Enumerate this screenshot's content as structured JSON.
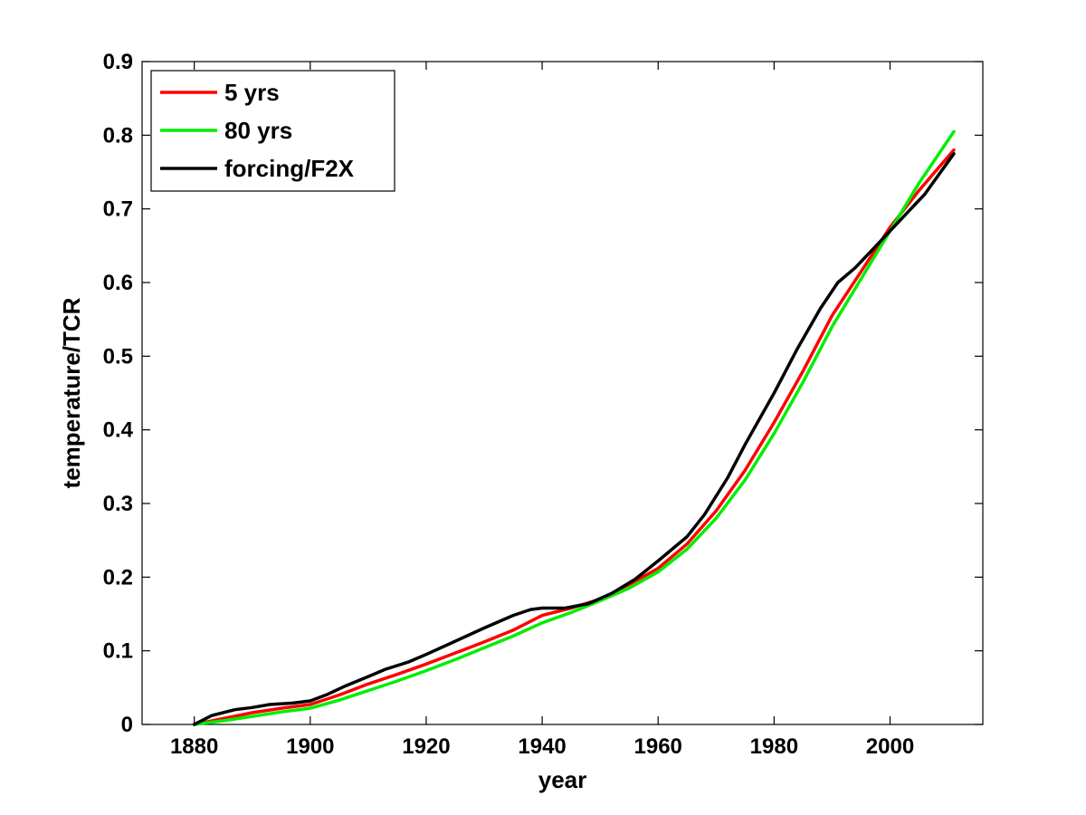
{
  "chart_data": {
    "type": "line",
    "title": "",
    "xlabel": "year",
    "ylabel": "temperature/TCR",
    "xlim": [
      1871,
      2016
    ],
    "ylim": [
      0,
      0.9
    ],
    "xticks": [
      1880,
      1900,
      1920,
      1940,
      1960,
      1980,
      2000
    ],
    "xtick_labels": [
      "1880",
      "1900",
      "1920",
      "1940",
      "1960",
      "1980",
      "2000"
    ],
    "yticks": [
      0,
      0.1,
      0.2,
      0.3,
      0.4,
      0.5,
      0.6,
      0.7,
      0.8,
      0.9
    ],
    "ytick_labels": [
      "0",
      "0.1",
      "0.2",
      "0.3",
      "0.4",
      "0.5",
      "0.6",
      "0.7",
      "0.8",
      "0.9"
    ],
    "grid": false,
    "legend_position": "top-left",
    "series": [
      {
        "name": "5 yrs",
        "color": "#ff0000",
        "x": [
          1880,
          1885,
          1890,
          1895,
          1900,
          1905,
          1910,
          1915,
          1920,
          1925,
          1930,
          1935,
          1940,
          1945,
          1950,
          1955,
          1960,
          1965,
          1970,
          1975,
          1980,
          1985,
          1990,
          1995,
          2000,
          2005,
          2011
        ],
        "y": [
          0.0,
          0.008,
          0.016,
          0.022,
          0.027,
          0.04,
          0.055,
          0.068,
          0.082,
          0.097,
          0.112,
          0.128,
          0.148,
          0.158,
          0.17,
          0.19,
          0.212,
          0.245,
          0.29,
          0.345,
          0.41,
          0.48,
          0.555,
          0.615,
          0.675,
          0.725,
          0.78
        ]
      },
      {
        "name": "80 yrs",
        "color": "#00ee00",
        "x": [
          1880,
          1885,
          1890,
          1895,
          1900,
          1905,
          1910,
          1915,
          1920,
          1925,
          1930,
          1935,
          1940,
          1945,
          1950,
          1955,
          1960,
          1965,
          1970,
          1975,
          1980,
          1985,
          1990,
          1995,
          2000,
          2005,
          2011
        ],
        "y": [
          0.0,
          0.005,
          0.011,
          0.017,
          0.022,
          0.033,
          0.046,
          0.059,
          0.073,
          0.088,
          0.104,
          0.12,
          0.138,
          0.152,
          0.168,
          0.185,
          0.207,
          0.238,
          0.28,
          0.332,
          0.395,
          0.465,
          0.54,
          0.605,
          0.67,
          0.735,
          0.805
        ]
      },
      {
        "name": "forcing/F2X",
        "color": "#000000",
        "x": [
          1880,
          1883,
          1887,
          1890,
          1893,
          1897,
          1900,
          1903,
          1906,
          1910,
          1913,
          1917,
          1920,
          1925,
          1930,
          1935,
          1938,
          1940,
          1944,
          1948,
          1952,
          1956,
          1960,
          1965,
          1968,
          1972,
          1975,
          1980,
          1984,
          1988,
          1991,
          1994,
          1997,
          2000,
          2003,
          2006,
          2011
        ],
        "y": [
          0.0,
          0.012,
          0.02,
          0.023,
          0.027,
          0.029,
          0.032,
          0.041,
          0.052,
          0.065,
          0.075,
          0.085,
          0.095,
          0.113,
          0.131,
          0.148,
          0.156,
          0.158,
          0.158,
          0.164,
          0.178,
          0.197,
          0.222,
          0.255,
          0.285,
          0.335,
          0.38,
          0.45,
          0.51,
          0.565,
          0.6,
          0.62,
          0.645,
          0.67,
          0.695,
          0.72,
          0.775
        ]
      }
    ]
  }
}
